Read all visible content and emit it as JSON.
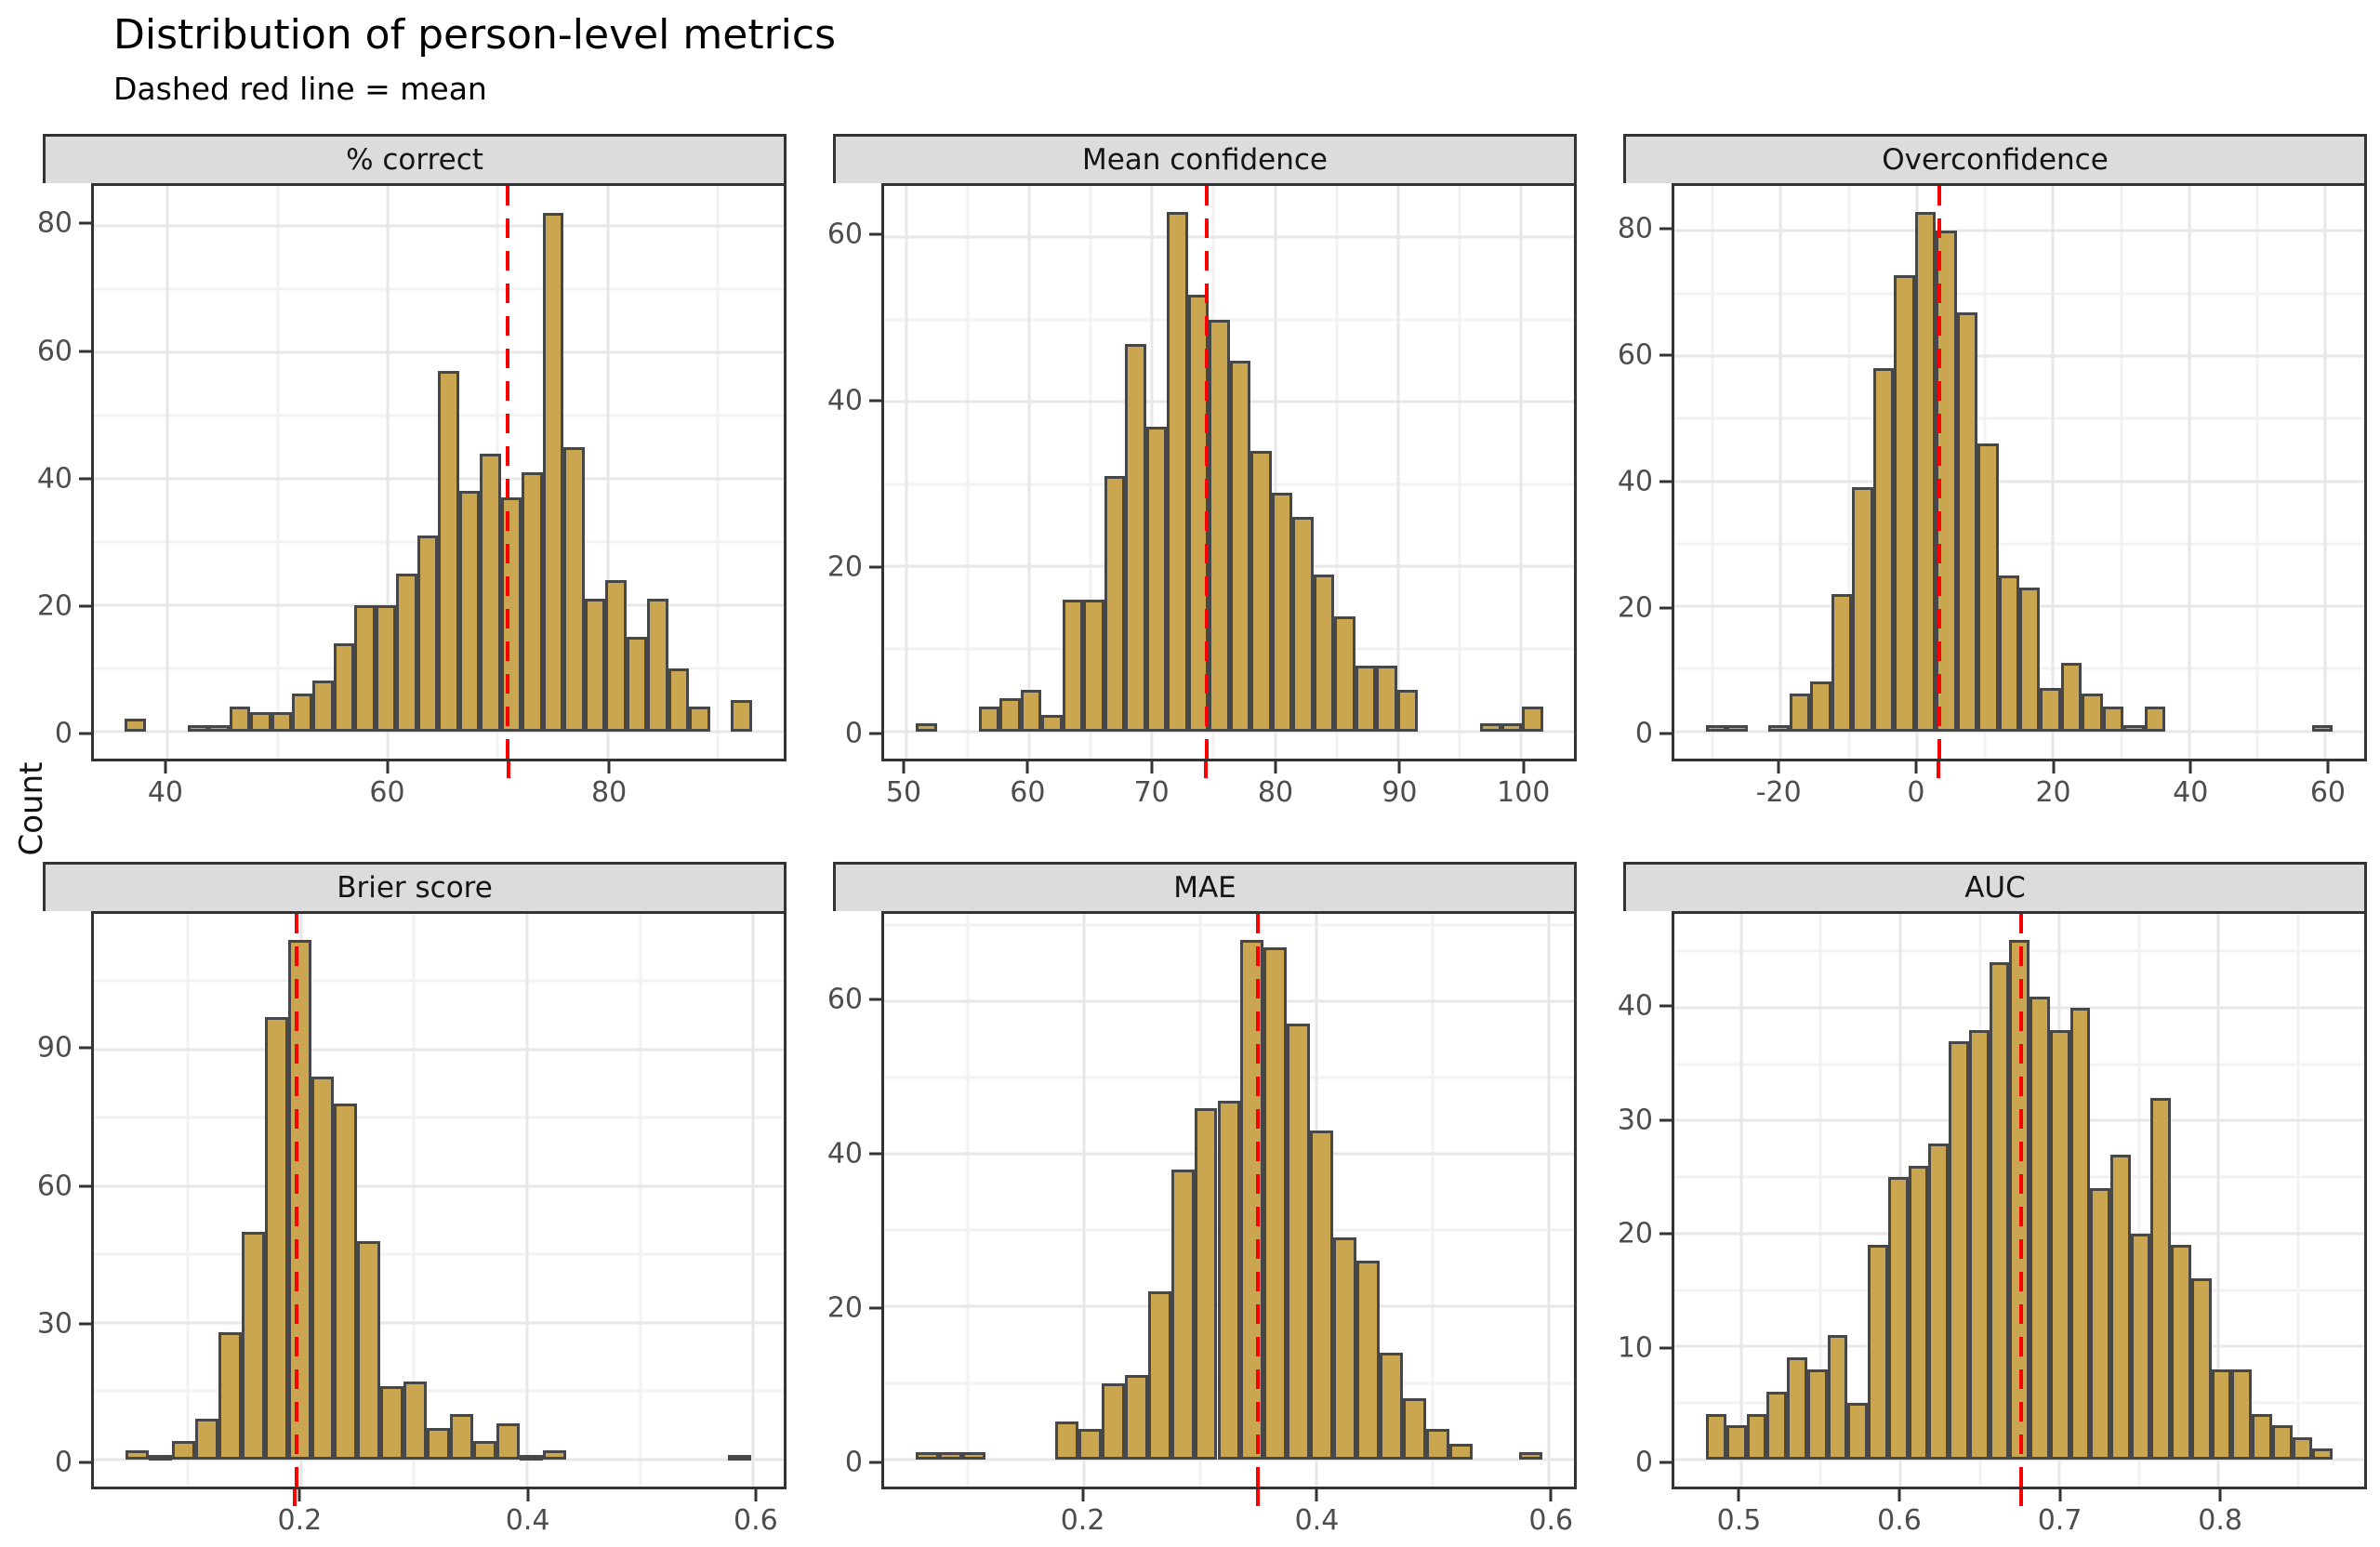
{
  "title": "Distribution of person-level metrics",
  "subtitle": "Dashed red line = mean",
  "y_axis_title": "Count",
  "colors": {
    "bar_fill": "#C9A64F",
    "bar_stroke": "#474747",
    "mean_line": "#FA0000",
    "strip_bg": "#DCDCDC",
    "panel_border": "#333333",
    "grid_major": "#E7E7E7",
    "grid_minor": "#F2F2F2",
    "axis_text": "#4D4D4D"
  },
  "chart_data": [
    {
      "type": "bar",
      "title": "% correct",
      "bin_start": 36.1,
      "bin_width": 1.9,
      "values": [
        2,
        0,
        0,
        1,
        1,
        4,
        3,
        3,
        6,
        8,
        14,
        20,
        20,
        25,
        31,
        57,
        38,
        44,
        37,
        41,
        82,
        45,
        21,
        24,
        15,
        21,
        10,
        4,
        0,
        5
      ],
      "mean": 70.9,
      "x_view": [
        33.3,
        96.0
      ],
      "y_view": [
        -4.3,
        86.3
      ],
      "x_ticks": [
        40,
        60,
        80
      ],
      "x_tick_labels": [
        "40",
        "60",
        "80"
      ],
      "x_minor": [
        50,
        70,
        90
      ],
      "y_ticks": [
        0,
        20,
        40,
        60,
        80
      ],
      "y_tick_labels": [
        "0",
        "20",
        "40",
        "60",
        "80"
      ],
      "y_minor": [
        10,
        30,
        50,
        70
      ]
    },
    {
      "type": "bar",
      "title": "Mean confidence",
      "bin_start": 50.8,
      "bin_width": 1.7,
      "values": [
        1,
        0,
        0,
        3,
        4,
        5,
        2,
        16,
        16,
        31,
        47,
        37,
        63,
        53,
        50,
        45,
        34,
        29,
        26,
        19,
        14,
        8,
        8,
        5,
        0,
        0,
        0,
        1,
        1,
        3
      ],
      "mean": 74.4,
      "x_view": [
        48.2,
        104.3
      ],
      "y_view": [
        -3.3,
        66.2
      ],
      "x_ticks": [
        50,
        60,
        70,
        80,
        90,
        100
      ],
      "x_tick_labels": [
        "50",
        "60",
        "70",
        "80",
        "90",
        "100"
      ],
      "x_minor": [
        55,
        65,
        75,
        85,
        95
      ],
      "y_ticks": [
        0,
        20,
        40,
        60
      ],
      "y_tick_labels": [
        "0",
        "20",
        "40",
        "60"
      ],
      "y_minor": [
        10,
        30,
        50
      ]
    },
    {
      "type": "bar",
      "title": "Overconfidence",
      "bin_start": -31,
      "bin_width": 3.07,
      "values": [
        1,
        1,
        0,
        1,
        6,
        8,
        22,
        39,
        58,
        73,
        83,
        80,
        67,
        46,
        25,
        23,
        7,
        11,
        6,
        4,
        1,
        4,
        0,
        0,
        0,
        0,
        0,
        0,
        0,
        1
      ],
      "mean": 3.3,
      "x_view": [
        -35.6,
        65.7
      ],
      "y_view": [
        -4.35,
        87.2
      ],
      "x_ticks": [
        -20,
        0,
        20,
        40,
        60
      ],
      "x_tick_labels": [
        "-20",
        "0",
        "20",
        "40",
        "60"
      ],
      "x_minor": [
        -30,
        -10,
        10,
        30,
        50
      ],
      "y_ticks": [
        0,
        20,
        40,
        60,
        80
      ],
      "y_tick_labels": [
        "0",
        "20",
        "40",
        "60",
        "80"
      ],
      "y_minor": [
        10,
        30,
        50,
        70
      ]
    },
    {
      "type": "bar",
      "title": "Brier score",
      "bin_start": 0.045,
      "bin_width": 0.0205,
      "values": [
        2,
        1,
        4,
        9,
        28,
        50,
        97,
        114,
        84,
        78,
        48,
        16,
        17,
        7,
        10,
        4,
        8,
        1,
        2,
        0,
        0,
        0,
        0,
        0,
        0,
        0,
        1
      ],
      "mean": 0.196,
      "x_view": [
        0.017,
        0.627
      ],
      "y_view": [
        -5.95,
        119.7
      ],
      "x_ticks": [
        0.2,
        0.4,
        0.6
      ],
      "x_tick_labels": [
        "0.2",
        "0.4",
        "0.6"
      ],
      "x_minor": [
        0.1,
        0.3,
        0.5
      ],
      "y_ticks": [
        0,
        30,
        60,
        90
      ],
      "y_tick_labels": [
        "0",
        "30",
        "60",
        "90"
      ],
      "y_minor": [
        15,
        45,
        75,
        105
      ]
    },
    {
      "type": "bar",
      "title": "MAE",
      "bin_start": 0.055,
      "bin_width": 0.02,
      "values": [
        1,
        1,
        1,
        0,
        0,
        0,
        5,
        4,
        10,
        11,
        22,
        38,
        46,
        47,
        68,
        67,
        57,
        43,
        29,
        26,
        14,
        8,
        4,
        2,
        0,
        0,
        1
      ],
      "mean": 0.35,
      "x_view": [
        0.028,
        0.622
      ],
      "y_view": [
        -3.55,
        71.4
      ],
      "x_ticks": [
        0.2,
        0.4,
        0.6
      ],
      "x_tick_labels": [
        "0.2",
        "0.4",
        "0.6"
      ],
      "x_minor": [
        0.1,
        0.3,
        0.5
      ],
      "y_ticks": [
        0,
        20,
        40,
        60
      ],
      "y_tick_labels": [
        "0",
        "20",
        "40",
        "60"
      ],
      "y_minor": [
        10,
        30,
        50,
        70
      ]
    },
    {
      "type": "bar",
      "title": "AUC",
      "bin_start": 0.478,
      "bin_width": 0.0127,
      "values": [
        4,
        3,
        4,
        6,
        9,
        8,
        11,
        5,
        19,
        25,
        26,
        28,
        37,
        38,
        44,
        46,
        41,
        38,
        40,
        24,
        27,
        20,
        32,
        19,
        16,
        8,
        8,
        4,
        3,
        2,
        1
      ],
      "mean": 0.676,
      "x_view": [
        0.458,
        0.8915
      ],
      "y_view": [
        -2.4,
        48.3
      ],
      "x_ticks": [
        0.5,
        0.6,
        0.7,
        0.8
      ],
      "x_tick_labels": [
        "0.5",
        "0.6",
        "0.7",
        "0.8"
      ],
      "x_minor": [
        0.55,
        0.65,
        0.75,
        0.85
      ],
      "y_ticks": [
        0,
        10,
        20,
        30,
        40
      ],
      "y_tick_labels": [
        "0",
        "10",
        "20",
        "30",
        "40"
      ],
      "y_minor": [
        5,
        15,
        25,
        35,
        45
      ]
    }
  ]
}
